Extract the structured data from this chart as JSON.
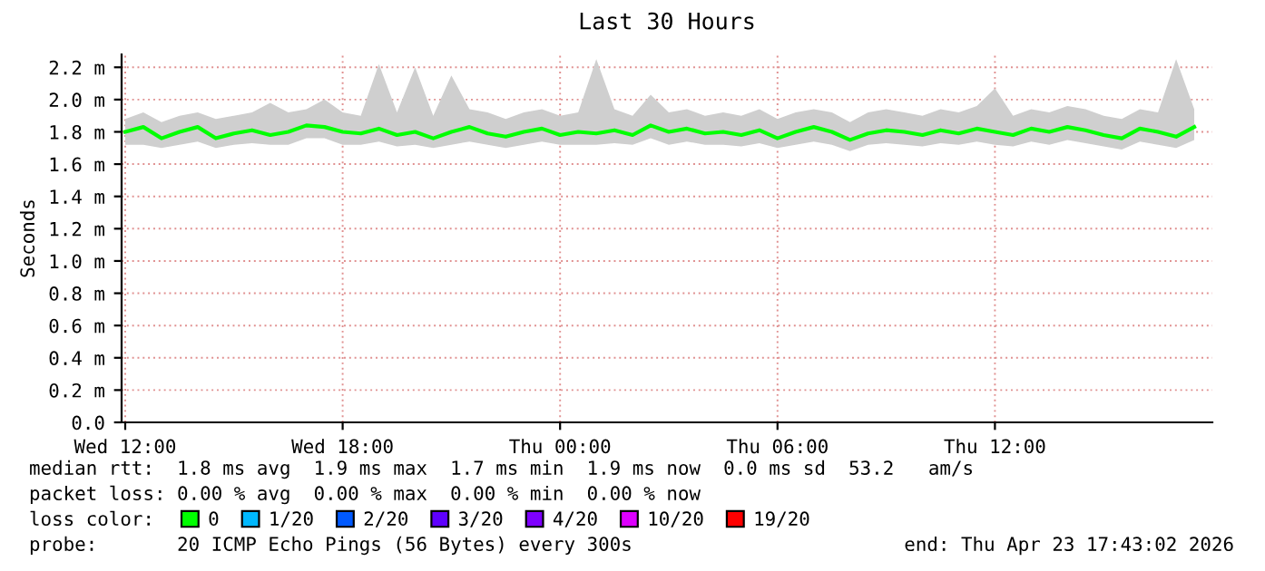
{
  "chart_data": {
    "type": "line",
    "title": "Last 30 Hours",
    "ylabel": "Seconds",
    "x": [
      "2026-04-22T12:00",
      "2026-04-22T12:30",
      "2026-04-22T13:00",
      "2026-04-22T13:30",
      "2026-04-22T14:00",
      "2026-04-22T14:30",
      "2026-04-22T15:00",
      "2026-04-22T15:30",
      "2026-04-22T16:00",
      "2026-04-22T16:30",
      "2026-04-22T17:00",
      "2026-04-22T17:30",
      "2026-04-22T18:00",
      "2026-04-22T18:30",
      "2026-04-22T19:00",
      "2026-04-22T19:30",
      "2026-04-22T20:00",
      "2026-04-22T20:30",
      "2026-04-22T21:00",
      "2026-04-22T21:30",
      "2026-04-22T22:00",
      "2026-04-22T22:30",
      "2026-04-22T23:00",
      "2026-04-22T23:30",
      "2026-04-23T00:00",
      "2026-04-23T00:30",
      "2026-04-23T01:00",
      "2026-04-23T01:30",
      "2026-04-23T02:00",
      "2026-04-23T02:30",
      "2026-04-23T03:00",
      "2026-04-23T03:30",
      "2026-04-23T04:00",
      "2026-04-23T04:30",
      "2026-04-23T05:00",
      "2026-04-23T05:30",
      "2026-04-23T06:00",
      "2026-04-23T06:30",
      "2026-04-23T07:00",
      "2026-04-23T07:30",
      "2026-04-23T08:00",
      "2026-04-23T08:30",
      "2026-04-23T09:00",
      "2026-04-23T09:30",
      "2026-04-23T10:00",
      "2026-04-23T10:30",
      "2026-04-23T11:00",
      "2026-04-23T11:30",
      "2026-04-23T12:00",
      "2026-04-23T12:30",
      "2026-04-23T13:00",
      "2026-04-23T13:30",
      "2026-04-23T14:00",
      "2026-04-23T14:30",
      "2026-04-23T15:00",
      "2026-04-23T15:30",
      "2026-04-23T16:00",
      "2026-04-23T16:30",
      "2026-04-23T17:00",
      "2026-04-23T17:30"
    ],
    "series": [
      {
        "name": "0",
        "color": "#00ff00",
        "values": [
          1.8,
          1.83,
          1.76,
          1.8,
          1.83,
          1.76,
          1.79,
          1.81,
          1.78,
          1.8,
          1.84,
          1.83,
          1.8,
          1.79,
          1.82,
          1.78,
          1.8,
          1.76,
          1.8,
          1.83,
          1.79,
          1.77,
          1.8,
          1.82,
          1.78,
          1.8,
          1.79,
          1.81,
          1.78,
          1.84,
          1.8,
          1.82,
          1.79,
          1.8,
          1.78,
          1.81,
          1.76,
          1.8,
          1.83,
          1.8,
          1.75,
          1.79,
          1.81,
          1.8,
          1.78,
          1.81,
          1.79,
          1.82,
          1.8,
          1.78,
          1.82,
          1.8,
          1.83,
          1.81,
          1.78,
          1.76,
          1.82,
          1.8,
          1.77,
          1.83
        ],
        "lower": [
          1.72,
          1.72,
          1.7,
          1.72,
          1.74,
          1.7,
          1.72,
          1.73,
          1.72,
          1.72,
          1.76,
          1.76,
          1.72,
          1.72,
          1.74,
          1.71,
          1.72,
          1.7,
          1.72,
          1.74,
          1.72,
          1.7,
          1.72,
          1.74,
          1.72,
          1.72,
          1.72,
          1.73,
          1.72,
          1.76,
          1.72,
          1.74,
          1.72,
          1.72,
          1.71,
          1.73,
          1.7,
          1.72,
          1.74,
          1.72,
          1.68,
          1.72,
          1.73,
          1.72,
          1.71,
          1.73,
          1.72,
          1.74,
          1.72,
          1.71,
          1.74,
          1.72,
          1.75,
          1.73,
          1.71,
          1.69,
          1.74,
          1.72,
          1.7,
          1.75
        ],
        "upper": [
          1.88,
          1.92,
          1.86,
          1.9,
          1.92,
          1.88,
          1.9,
          1.92,
          1.98,
          1.92,
          1.94,
          2.0,
          1.92,
          1.9,
          2.22,
          1.92,
          2.2,
          1.9,
          2.15,
          1.94,
          1.92,
          1.88,
          1.92,
          1.94,
          1.9,
          1.92,
          2.25,
          1.94,
          1.9,
          2.03,
          1.92,
          1.94,
          1.9,
          1.92,
          1.9,
          1.94,
          1.88,
          1.92,
          1.94,
          1.92,
          1.86,
          1.92,
          1.94,
          1.92,
          1.9,
          1.94,
          1.92,
          1.96,
          2.07,
          1.9,
          1.94,
          1.92,
          1.96,
          1.94,
          1.9,
          1.88,
          1.94,
          1.92,
          2.25,
          1.94
        ]
      },
      {
        "name": "1/20",
        "color": "#00b8ff",
        "values": [
          null,
          null,
          null,
          null,
          null,
          null,
          null,
          null,
          null,
          null,
          null,
          null,
          null,
          null,
          null,
          null,
          null,
          null,
          null,
          null,
          null,
          null,
          null,
          null,
          null,
          null,
          null,
          null,
          null,
          null,
          null,
          null,
          null,
          null,
          null,
          null,
          null,
          null,
          null,
          null,
          null,
          null,
          null,
          null,
          null,
          null,
          null,
          null,
          null,
          null,
          null,
          null,
          null,
          null,
          null,
          null,
          null,
          null,
          null,
          null
        ]
      },
      {
        "name": "2/20",
        "color": "#0059ff",
        "values": [
          null,
          null,
          null,
          null,
          null,
          null,
          null,
          null,
          null,
          null,
          null,
          null,
          null,
          null,
          null,
          null,
          null,
          null,
          null,
          null,
          null,
          null,
          null,
          null,
          null,
          null,
          null,
          null,
          null,
          null,
          null,
          null,
          null,
          null,
          null,
          null,
          null,
          null,
          null,
          null,
          null,
          null,
          null,
          null,
          null,
          null,
          null,
          null,
          null,
          null,
          null,
          null,
          null,
          null,
          null,
          null,
          null,
          null,
          null,
          null
        ]
      },
      {
        "name": "3/20",
        "color": "#5e00ff",
        "values": [
          null,
          null,
          null,
          null,
          null,
          null,
          null,
          null,
          null,
          null,
          null,
          null,
          null,
          null,
          null,
          null,
          null,
          null,
          null,
          null,
          null,
          null,
          null,
          null,
          null,
          null,
          null,
          null,
          null,
          null,
          null,
          null,
          null,
          null,
          null,
          null,
          null,
          null,
          null,
          null,
          null,
          null,
          null,
          null,
          null,
          null,
          null,
          null,
          null,
          null,
          null,
          null,
          null,
          null,
          null,
          null,
          null,
          null,
          null,
          null
        ]
      },
      {
        "name": "4/20",
        "color": "#7e00ff",
        "values": [
          null,
          null,
          null,
          null,
          null,
          null,
          null,
          null,
          null,
          null,
          null,
          null,
          null,
          null,
          null,
          null,
          null,
          null,
          null,
          null,
          null,
          null,
          null,
          null,
          null,
          null,
          null,
          null,
          null,
          null,
          null,
          null,
          null,
          null,
          null,
          null,
          null,
          null,
          null,
          null,
          null,
          null,
          null,
          null,
          null,
          null,
          null,
          null,
          null,
          null,
          null,
          null,
          null,
          null,
          null,
          null,
          null,
          null,
          null,
          null
        ]
      },
      {
        "name": "10/20",
        "color": "#dd00ff",
        "values": [
          null,
          null,
          null,
          null,
          null,
          null,
          null,
          null,
          null,
          null,
          null,
          null,
          null,
          null,
          null,
          null,
          null,
          null,
          null,
          null,
          null,
          null,
          null,
          null,
          null,
          null,
          null,
          null,
          null,
          null,
          null,
          null,
          null,
          null,
          null,
          null,
          null,
          null,
          null,
          null,
          null,
          null,
          null,
          null,
          null,
          null,
          null,
          null,
          null,
          null,
          null,
          null,
          null,
          null,
          null,
          null,
          null,
          null,
          null,
          null
        ]
      },
      {
        "name": "19/20",
        "color": "#ff0000",
        "values": [
          null,
          null,
          null,
          null,
          null,
          null,
          null,
          null,
          null,
          null,
          null,
          null,
          null,
          null,
          null,
          null,
          null,
          null,
          null,
          null,
          null,
          null,
          null,
          null,
          null,
          null,
          null,
          null,
          null,
          null,
          null,
          null,
          null,
          null,
          null,
          null,
          null,
          null,
          null,
          null,
          null,
          null,
          null,
          null,
          null,
          null,
          null,
          null,
          null,
          null,
          null,
          null,
          null,
          null,
          null,
          null,
          null,
          null,
          null,
          null
        ]
      }
    ],
    "xlim": [
      "2026-04-22T11:54",
      "2026-04-23T18:00"
    ],
    "xticks": [
      {
        "value": "2026-04-22T12:00",
        "label": "Wed 12:00"
      },
      {
        "value": "2026-04-22T18:00",
        "label": "Wed 18:00"
      },
      {
        "value": "2026-04-23T00:00",
        "label": "Thu 00:00"
      },
      {
        "value": "2026-04-23T06:00",
        "label": "Thu 06:00"
      },
      {
        "value": "2026-04-23T12:00",
        "label": "Thu 12:00"
      }
    ],
    "ylim": [
      0,
      2.28
    ],
    "yticks": [
      {
        "value": 0,
        "label": "0.0"
      },
      {
        "value": 0.2,
        "label": "0.2 m"
      },
      {
        "value": 0.4,
        "label": "0.4 m"
      },
      {
        "value": 0.6,
        "label": "0.6 m"
      },
      {
        "value": 0.8,
        "label": "0.8 m"
      },
      {
        "value": 1.0,
        "label": "1.0 m"
      },
      {
        "value": 1.2,
        "label": "1.2 m"
      },
      {
        "value": 1.4,
        "label": "1.4 m"
      },
      {
        "value": 1.6,
        "label": "1.6 m"
      },
      {
        "value": 1.8,
        "label": "1.8 m"
      },
      {
        "value": 2.0,
        "label": "2.0 m"
      },
      {
        "value": 2.2,
        "label": "2.2 m"
      }
    ],
    "grid": true,
    "legend": "bottom",
    "legend_title": "loss color:",
    "annotations": [
      "median rtt:  1.8 ms avg  1.9 ms max  1.7 ms min  1.9 ms now  0.0 ms sd  53.2   am/s",
      "packet loss: 0.00 % avg  0.00 % max  0.00 % min  0.00 % now",
      "probe:       20 ICMP Echo Pings (56 Bytes) every 300s",
      "end: Thu Apr 23 17:43:02 2026"
    ]
  }
}
